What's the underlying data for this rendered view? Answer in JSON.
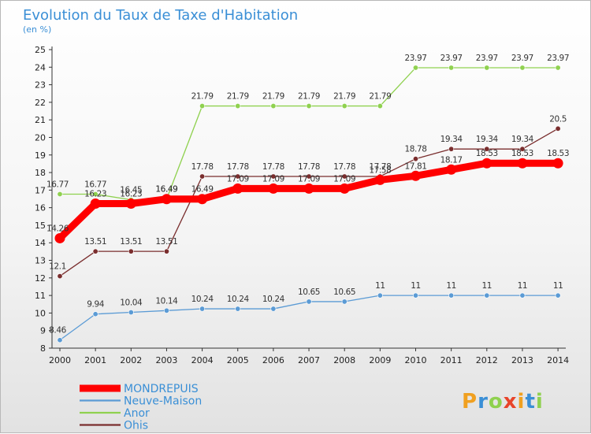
{
  "chart_data": {
    "type": "line",
    "title": "Evolution du Taux de Taxe d'Habitation",
    "subtitle": "(en %)",
    "x": [
      "2000",
      "2001",
      "2002",
      "2003",
      "2004",
      "2005",
      "2006",
      "2007",
      "2008",
      "2009",
      "2010",
      "2011",
      "2012",
      "2013",
      "2014"
    ],
    "ylim": [
      8,
      25
    ],
    "yticks": [
      8,
      9,
      10,
      11,
      12,
      13,
      14,
      15,
      16,
      17,
      18,
      19,
      20,
      21,
      22,
      23,
      24,
      25
    ],
    "grid": false,
    "legend_position": "bottom-left",
    "series": [
      {
        "name": "MONDREPUIS",
        "color": "#ff0000",
        "values": [
          14.26,
          16.23,
          16.23,
          16.49,
          16.49,
          17.09,
          17.09,
          17.09,
          17.09,
          17.58,
          17.81,
          18.17,
          18.53,
          18.53,
          18.53
        ],
        "labels": [
          "14.26",
          "16.23",
          "16.23",
          "16.49",
          "16.49",
          "17.09",
          "17.09",
          "17.09",
          "17.09",
          "17.58",
          "17.81",
          "18.17",
          "18.53",
          "18.53",
          "18.53"
        ]
      },
      {
        "name": "Neuve-Maison",
        "color": "#5b9bd5",
        "values": [
          8.46,
          9.94,
          10.04,
          10.14,
          10.24,
          10.24,
          10.24,
          10.65,
          10.65,
          11,
          11,
          11,
          11,
          11,
          11
        ],
        "labels": [
          "8.46",
          "9.94",
          "10.04",
          "10.14",
          "10.24",
          "10.24",
          "10.24",
          "10.65",
          "10.65",
          "11",
          "11",
          "11",
          "11",
          "11",
          "11"
        ]
      },
      {
        "name": "Anor",
        "color": "#8fd14f",
        "values": [
          16.77,
          16.77,
          16.45,
          16.49,
          21.79,
          21.79,
          21.79,
          21.79,
          21.79,
          21.79,
          23.97,
          23.97,
          23.97,
          23.97,
          23.97
        ],
        "labels": [
          "16.77",
          "16.77",
          "16.45",
          "16.49",
          "21.79",
          "21.79",
          "21.79",
          "21.79",
          "21.79",
          "21.79",
          "23.97",
          "23.97",
          "23.97",
          "23.97",
          "23.97"
        ]
      },
      {
        "name": "Ohis",
        "color": "#7a2e2e",
        "values": [
          12.1,
          13.51,
          13.51,
          13.51,
          17.78,
          17.78,
          17.78,
          17.78,
          17.78,
          17.78,
          18.78,
          19.34,
          19.34,
          19.34,
          20.5
        ],
        "labels": [
          "12.1",
          "13.51",
          "13.51",
          "13.51",
          "17.78",
          "17.78",
          "17.78",
          "17.78",
          "17.78",
          "17.78",
          "18.78",
          "19.34",
          "19.34",
          "19.34",
          "20.5"
        ]
      }
    ]
  },
  "brand": {
    "letters": [
      "P",
      "r",
      "o",
      "x",
      "i",
      "t",
      "i"
    ],
    "colors": [
      "#f0a020",
      "#3a8fd6",
      "#8fd14f",
      "#e8442a",
      "#f0a020",
      "#3a8fd6",
      "#8fd14f"
    ]
  }
}
